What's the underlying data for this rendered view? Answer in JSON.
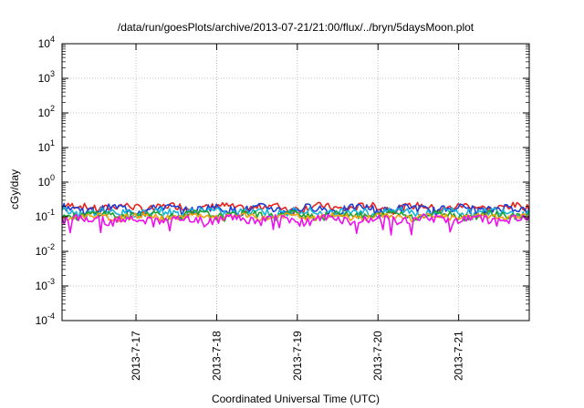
{
  "chart_data": {
    "type": "line",
    "title": "/data/run/goesPlots/archive/2013-07-21/21:00/flux/../bryn/5daysMoon.plot",
    "xlabel": "Coordinated Universal Time (UTC)",
    "ylabel": "cGy/day",
    "yscale": "log",
    "ylim": [
      0.0001,
      10000
    ],
    "y_ticks": [
      {
        "base": "10",
        "exp": "4",
        "value": 10000
      },
      {
        "base": "10",
        "exp": "3",
        "value": 1000
      },
      {
        "base": "10",
        "exp": "2",
        "value": 100
      },
      {
        "base": "10",
        "exp": "1",
        "value": 10
      },
      {
        "base": "10",
        "exp": "0",
        "value": 1
      },
      {
        "base": "10",
        "exp": "-1",
        "value": 0.1
      },
      {
        "base": "10",
        "exp": "-2",
        "value": 0.01
      },
      {
        "base": "10",
        "exp": "-3",
        "value": 0.001
      },
      {
        "base": "10",
        "exp": "-4",
        "value": 0.0001
      }
    ],
    "xlim": [
      "2013-07-16T02:00",
      "2013-07-21T21:00"
    ],
    "x_ticks": [
      "2013-7-17",
      "2013-7-18",
      "2013-7-19",
      "2013-7-20",
      "2013-7-21"
    ],
    "grid": true,
    "series": [
      {
        "color": "#e8231b",
        "level": 0.19,
        "noise": 0.06
      },
      {
        "color": "#1e3fd6",
        "level": 0.17,
        "noise": 0.06
      },
      {
        "color": "#16b4d8",
        "level": 0.14,
        "noise": 0.05
      },
      {
        "color": "#1fa32d",
        "level": 0.115,
        "noise": 0.035
      },
      {
        "color": "#f2a00f",
        "level": 0.1,
        "noise": 0.025
      },
      {
        "color": "#ee11ee",
        "level": 0.085,
        "noise": 0.03
      }
    ]
  }
}
